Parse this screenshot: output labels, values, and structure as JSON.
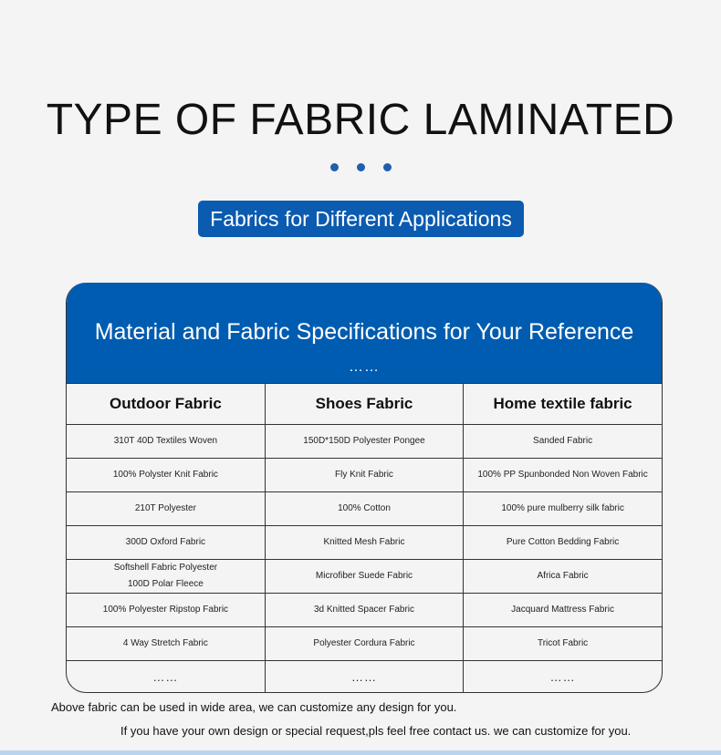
{
  "title": "TYPE OF FABRIC LAMINATED",
  "badge": "Fabrics for Different Applications",
  "card": {
    "title": "Material and Fabric Specifications for Your Reference",
    "dots": "……"
  },
  "table": {
    "headers": [
      "Outdoor Fabric",
      "Shoes Fabric",
      "Home textile fabric"
    ],
    "rows": [
      [
        "310T 40D Textiles Woven",
        "150D*150D Polyester Pongee",
        "Sanded Fabric"
      ],
      [
        "100% Polyster Knit Fabric",
        "Fly Knit Fabric",
        "100% PP Spunbonded Non Woven Fabric"
      ],
      [
        "210T Polyester",
        "100% Cotton",
        "100% pure mulberry silk fabric"
      ],
      [
        "300D Oxford Fabric",
        "Knitted Mesh Fabric",
        "Pure Cotton Bedding Fabric"
      ],
      [
        "Softshell Fabric Polyester\n100D Polar Fleece",
        "Microfiber Suede Fabric",
        "Africa Fabric"
      ],
      [
        "100% Polyester Ripstop Fabric",
        "3d Knitted Spacer Fabric",
        "Jacquard Mattress Fabric"
      ],
      [
        "4 Way Stretch Fabric",
        "Polyester Cordura Fabric",
        "Tricot Fabric"
      ],
      [
        "……",
        "……",
        "……"
      ]
    ]
  },
  "notes": [
    "Above fabric can be used in wide area, we can customize any design for you.",
    "If you have your own design or special request,pls feel free contact us. we can customize for you."
  ],
  "colors": {
    "accent": "#005cb0",
    "background": "#f4f4f4"
  }
}
